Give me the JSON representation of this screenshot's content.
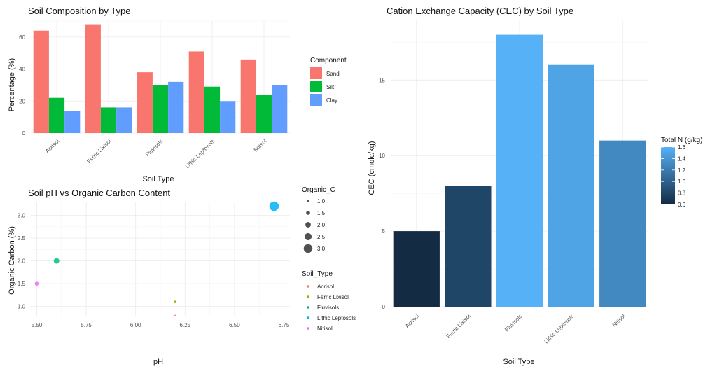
{
  "chart_data": [
    {
      "type": "bar",
      "title": "Soil Composition by Type",
      "xlabel": "Soil Type",
      "ylabel": "Percentage (%)",
      "categories": [
        "Acrisol",
        "Ferric Lixisol",
        "Fluvisols",
        "Lithic Leptosols",
        "Nitisol"
      ],
      "series": [
        {
          "name": "Sand",
          "values": [
            64,
            68,
            38,
            51,
            46
          ],
          "color": "#f8766d"
        },
        {
          "name": "Silt",
          "values": [
            22,
            16,
            30,
            29,
            24
          ],
          "color": "#00ba38"
        },
        {
          "name": "Clay",
          "values": [
            14,
            16,
            32,
            20,
            30
          ],
          "color": "#619cff"
        }
      ],
      "ylim": [
        0,
        70
      ],
      "yticks": [
        0,
        20,
        40,
        60
      ],
      "legend": {
        "title": "Component",
        "position": "right"
      },
      "grid": true
    },
    {
      "type": "scatter",
      "title": "Soil pH vs Organic Carbon Content",
      "xlabel": "pH",
      "ylabel": "Organic Carbon (%)",
      "xlim": [
        5.47,
        6.78
      ],
      "ylim": [
        0.78,
        3.3
      ],
      "xticks": [
        "5.50",
        "5.75",
        "6.00",
        "6.25",
        "6.50",
        "6.75"
      ],
      "yticks": [
        "1.0",
        "1.5",
        "2.0",
        "2.5",
        "3.0"
      ],
      "points": [
        {
          "soil_type": "Acrisol",
          "ph": 6.2,
          "organic_c": 0.8,
          "color": "#f8766d"
        },
        {
          "soil_type": "Ferric Lixisol",
          "ph": 6.2,
          "organic_c": 1.1,
          "color": "#a3a500"
        },
        {
          "soil_type": "Fluvisols",
          "ph": 5.6,
          "organic_c": 2.0,
          "color": "#00bf7d"
        },
        {
          "soil_type": "Lithic Leptosols",
          "ph": 6.7,
          "organic_c": 3.2,
          "color": "#00b0f6"
        },
        {
          "soil_type": "Nitisol",
          "ph": 5.5,
          "organic_c": 1.5,
          "color": "#e76bf3"
        }
      ],
      "size_legend": {
        "title": "Organic_C",
        "values": [
          "1.0",
          "1.5",
          "2.0",
          "2.5",
          "3.0"
        ]
      },
      "color_legend": {
        "title": "Soil_Type",
        "entries": [
          "Acrisol",
          "Ferric Lixisol",
          "Fluvisols",
          "Lithic Leptosols",
          "Nitisol"
        ]
      },
      "grid": true
    },
    {
      "type": "bar",
      "title": "Cation Exchange Capacity (CEC) by Soil Type",
      "xlabel": "Soil Type",
      "ylabel": "CEC (cmolc/kg)",
      "categories": [
        "Acrisol",
        "Ferric Lixisol",
        "Fluvisols",
        "Lithic Leptosols",
        "Nitisol"
      ],
      "values": [
        5,
        8,
        18,
        16,
        11
      ],
      "fill_values": [
        0.6,
        0.8,
        1.6,
        1.5,
        1.3
      ],
      "ylim": [
        0,
        19
      ],
      "yticks": [
        0,
        5,
        10,
        15
      ],
      "color_scale": {
        "title": "Total N (g/kg)",
        "min": 0.6,
        "max": 1.6,
        "low": "#132b43",
        "high": "#56b1f7",
        "ticks": [
          "1.6",
          "1.4",
          "1.2",
          "1.0",
          "0.8",
          "0.6"
        ]
      },
      "grid": true
    }
  ]
}
